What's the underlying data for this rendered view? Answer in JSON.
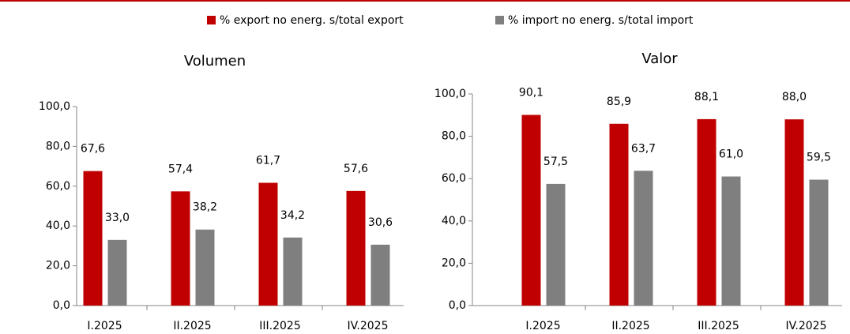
{
  "chart_data": [
    {
      "type": "bar",
      "title": "Volumen",
      "categories": [
        "I.2025",
        "II.2025",
        "III.2025",
        "IV.2025"
      ],
      "series": [
        {
          "name": "% export no energ. s/total export",
          "color": "#c00000",
          "values": [
            67.6,
            57.4,
            61.7,
            57.6
          ],
          "value_labels": [
            "67,6",
            "57,4",
            "61,7",
            "57,6"
          ]
        },
        {
          "name": "% import no energ. s/total import",
          "color": "#7f7f7f",
          "values": [
            33.0,
            38.2,
            34.2,
            30.6
          ],
          "value_labels": [
            "33,0",
            "38,2",
            "34,2",
            "30,6"
          ]
        }
      ],
      "ylim": [
        0,
        100
      ],
      "yticks": [
        {
          "value": 0,
          "label": "0,0"
        },
        {
          "value": 20,
          "label": "20,0"
        },
        {
          "value": 40,
          "label": "40,0"
        },
        {
          "value": 60,
          "label": "60,0"
        },
        {
          "value": 80,
          "label": "80,0"
        },
        {
          "value": 100,
          "label": "100,0"
        }
      ]
    },
    {
      "type": "bar",
      "title": "Valor",
      "categories": [
        "I.2025",
        "II.2025",
        "III.2025",
        "IV.2025"
      ],
      "series": [
        {
          "color": "#c00000",
          "values": [
            90.1,
            85.9,
            88.1,
            88.0
          ],
          "value_labels": [
            "90,1",
            "85,9",
            "88,1",
            "88,0"
          ]
        },
        {
          "color": "#7f7f7f",
          "values": [
            57.5,
            63.7,
            61.0,
            59.5
          ],
          "value_labels": [
            "57,5",
            "63,7",
            "61,0",
            "59,5"
          ]
        }
      ],
      "ylim": [
        0,
        100
      ],
      "yticks": [
        {
          "value": 0,
          "label": "0,0"
        },
        {
          "value": 20,
          "label": "20,0"
        },
        {
          "value": 40,
          "label": "40,0"
        },
        {
          "value": 60,
          "label": "60,0"
        },
        {
          "value": 80,
          "label": "80,0"
        },
        {
          "value": 100,
          "label": "100,0"
        }
      ]
    }
  ]
}
